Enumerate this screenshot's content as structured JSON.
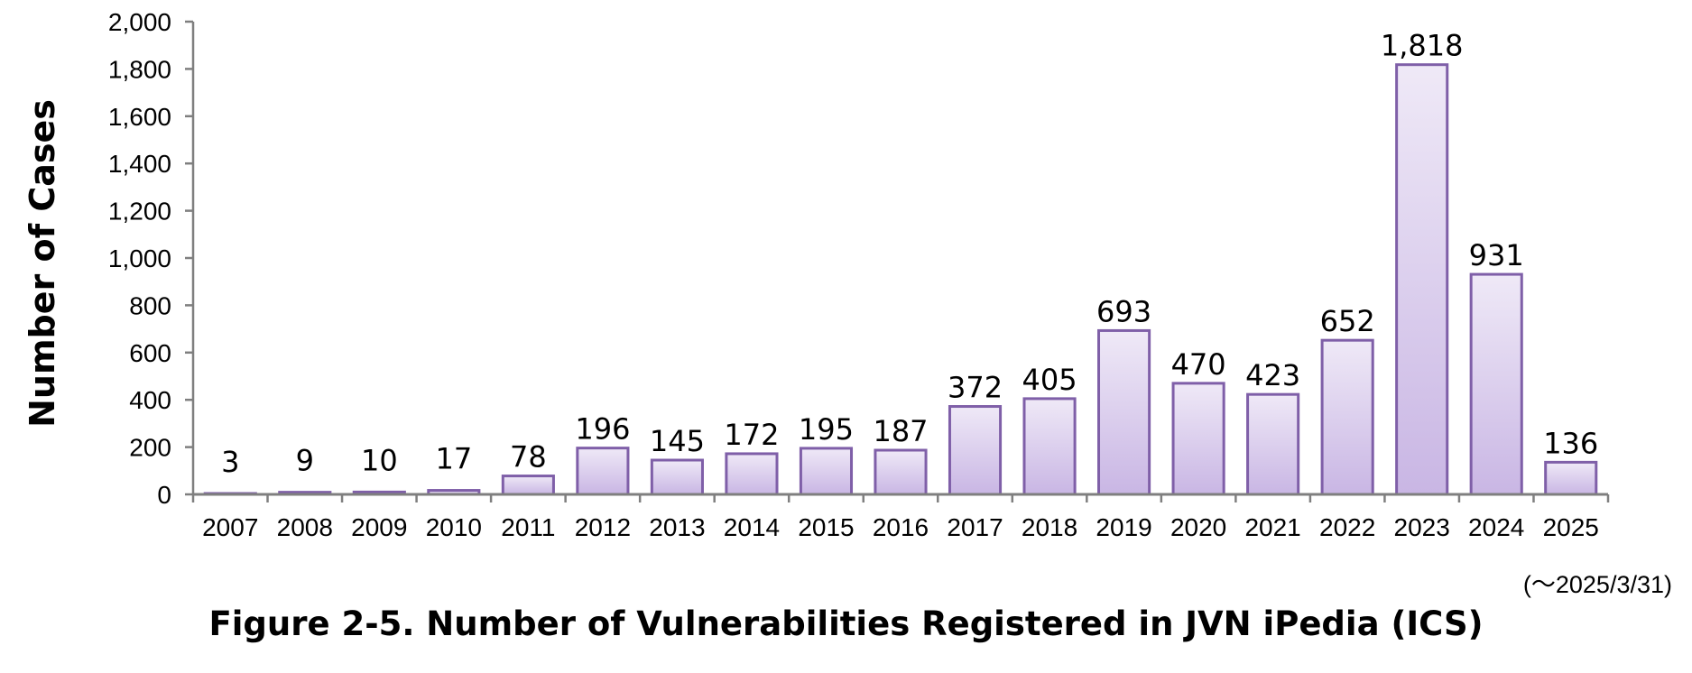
{
  "chart_data": {
    "type": "bar",
    "ylabel": "Number of Cases",
    "xlabel": "",
    "ylim": [
      0,
      2000
    ],
    "yticks": [
      "0",
      "200",
      "400",
      "600",
      "800",
      "1,000",
      "1,200",
      "1,400",
      "1,600",
      "1,800",
      "2,000"
    ],
    "categories": [
      "2007",
      "2008",
      "2009",
      "2010",
      "2011",
      "2012",
      "2013",
      "2014",
      "2015",
      "2016",
      "2017",
      "2018",
      "2019",
      "2020",
      "2021",
      "2022",
      "2023",
      "2024",
      "2025"
    ],
    "values": [
      3,
      9,
      10,
      17,
      78,
      196,
      145,
      172,
      195,
      187,
      372,
      405,
      693,
      470,
      423,
      652,
      1818,
      931,
      136
    ],
    "value_labels": [
      "3",
      "9",
      "10",
      "17",
      "78",
      "196",
      "145",
      "172",
      "195",
      "187",
      "372",
      "405",
      "693",
      "470",
      "423",
      "652",
      "1,818",
      "931",
      "136"
    ],
    "grid": false,
    "bar_fill_top": "#efe9f7",
    "bar_fill_bottom": "#c9b6e4",
    "bar_stroke": "#7f5fa8",
    "axis_color": "#7f7f7f"
  },
  "note": "(～2025/3/31)",
  "caption": "Figure 2-5. Number of Vulnerabilities Registered in JVN iPedia (ICS)"
}
